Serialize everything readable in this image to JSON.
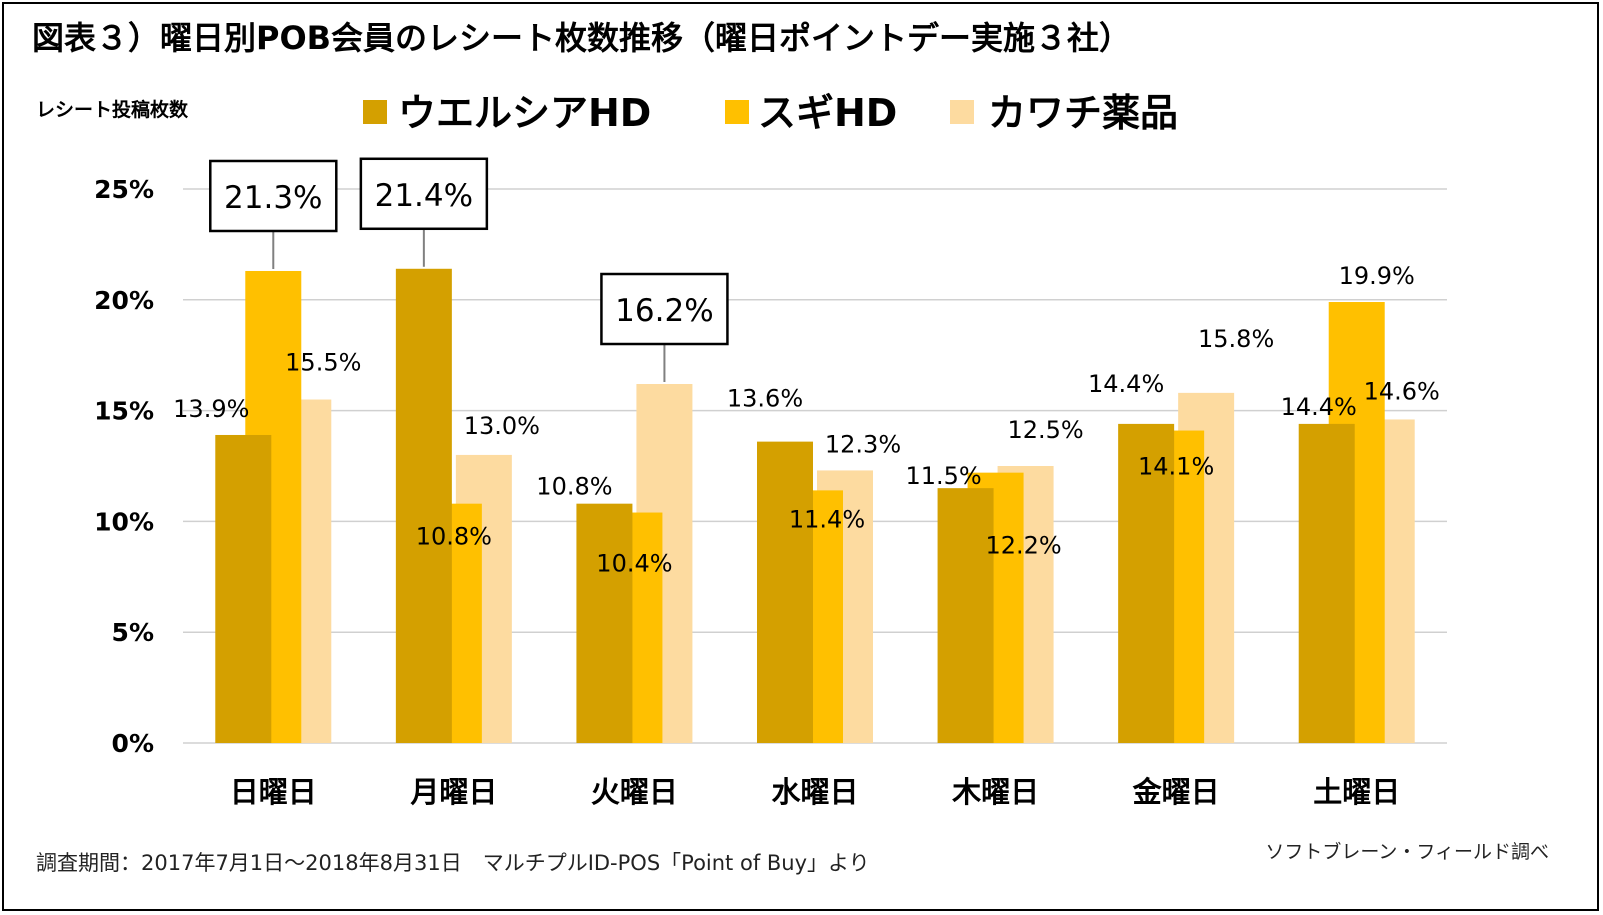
{
  "title": "図表３）曜日別POB会員のレシート枚数推移（曜日ポイントデー実施３社）",
  "footnote": "調査期間：2017年7月1日～2018年8月31日　マルチプルID-POS「Point of Buy」より",
  "credit": "ソフトブレーン・フィールド調べ",
  "colors": {
    "welcia": "#D4A000",
    "sugi": "#FFC000",
    "kawachi": "#FDDBA0",
    "grid": "#D0D0D0",
    "callout_border": "#000000"
  },
  "chart_data": {
    "type": "bar",
    "title": "図表３）曜日別POB会員のレシート枚数推移（曜日ポイントデー実施３社）",
    "ylabel": "レシート投稿枚数",
    "xlabel": "",
    "categories": [
      "日曜日",
      "月曜日",
      "火曜日",
      "水曜日",
      "木曜日",
      "金曜日",
      "土曜日"
    ],
    "series": [
      {
        "name": "ウエルシアHD",
        "values": [
          13.9,
          21.4,
          10.8,
          13.6,
          11.5,
          14.4,
          14.4
        ],
        "labels": [
          "13.9%",
          "21.4%",
          "10.8%",
          "13.6%",
          "11.5%",
          "14.4%",
          "14.4%"
        ]
      },
      {
        "name": "スギHD",
        "values": [
          21.3,
          10.8,
          10.4,
          11.4,
          12.2,
          14.1,
          19.9
        ],
        "labels": [
          "21.3%",
          "10.8%",
          "10.4%",
          "11.4%",
          "12.2%",
          "14.1%",
          "19.9%"
        ]
      },
      {
        "name": "カワチ薬品",
        "values": [
          15.5,
          13.0,
          16.2,
          12.3,
          12.5,
          15.8,
          14.6
        ],
        "labels": [
          "15.5%",
          "13.0%",
          "16.2%",
          "12.3%",
          "12.5%",
          "15.8%",
          "14.6%"
        ]
      }
    ],
    "highlighted": [
      {
        "series": 1,
        "category": 0
      },
      {
        "series": 0,
        "category": 1
      },
      {
        "series": 2,
        "category": 2
      }
    ],
    "ylim": [
      0,
      25
    ],
    "yticks": [
      "0%",
      "5%",
      "10%",
      "15%",
      "20%",
      "25%"
    ],
    "grid": true,
    "legend_position": "top"
  }
}
